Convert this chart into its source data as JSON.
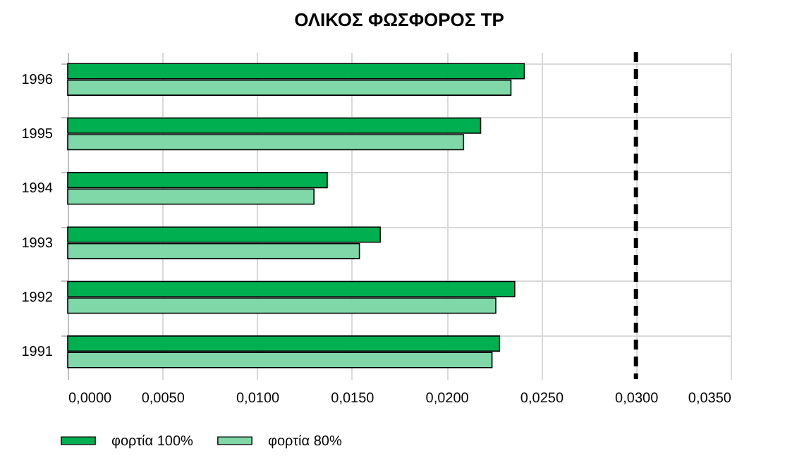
{
  "chart_data": {
    "type": "bar",
    "orientation": "horizontal",
    "title": "ΟΛΙΚΟΣ ΦΩΣΦΟΡΟΣ TP",
    "categories": [
      "1996",
      "1995",
      "1994",
      "1993",
      "1992",
      "1991"
    ],
    "series": [
      {
        "name": "φορτία 100%",
        "color": "#00b050",
        "values": [
          0.0241,
          0.0218,
          0.0137,
          0.0165,
          0.0236,
          0.0228
        ]
      },
      {
        "name": "φορτία 80%",
        "color": "#80d7a8",
        "values": [
          0.0234,
          0.0209,
          0.013,
          0.0154,
          0.0226,
          0.0224
        ]
      }
    ],
    "xlim": [
      0,
      0.035
    ],
    "xticks": [
      {
        "value": 0,
        "label": "0,0000"
      },
      {
        "value": 0.005,
        "label": "0,0050"
      },
      {
        "value": 0.01,
        "label": "0,0100"
      },
      {
        "value": 0.015,
        "label": "0,0150"
      },
      {
        "value": 0.02,
        "label": "0,0200"
      },
      {
        "value": 0.025,
        "label": "0,0250"
      },
      {
        "value": 0.03,
        "label": "0,0300"
      },
      {
        "value": 0.035,
        "label": "0,0350"
      }
    ],
    "ref_lines": [
      {
        "axis": "x",
        "value": 0.03,
        "color": "#000000",
        "line_style": "dashed"
      }
    ],
    "grid": true,
    "legend": "bottom"
  }
}
